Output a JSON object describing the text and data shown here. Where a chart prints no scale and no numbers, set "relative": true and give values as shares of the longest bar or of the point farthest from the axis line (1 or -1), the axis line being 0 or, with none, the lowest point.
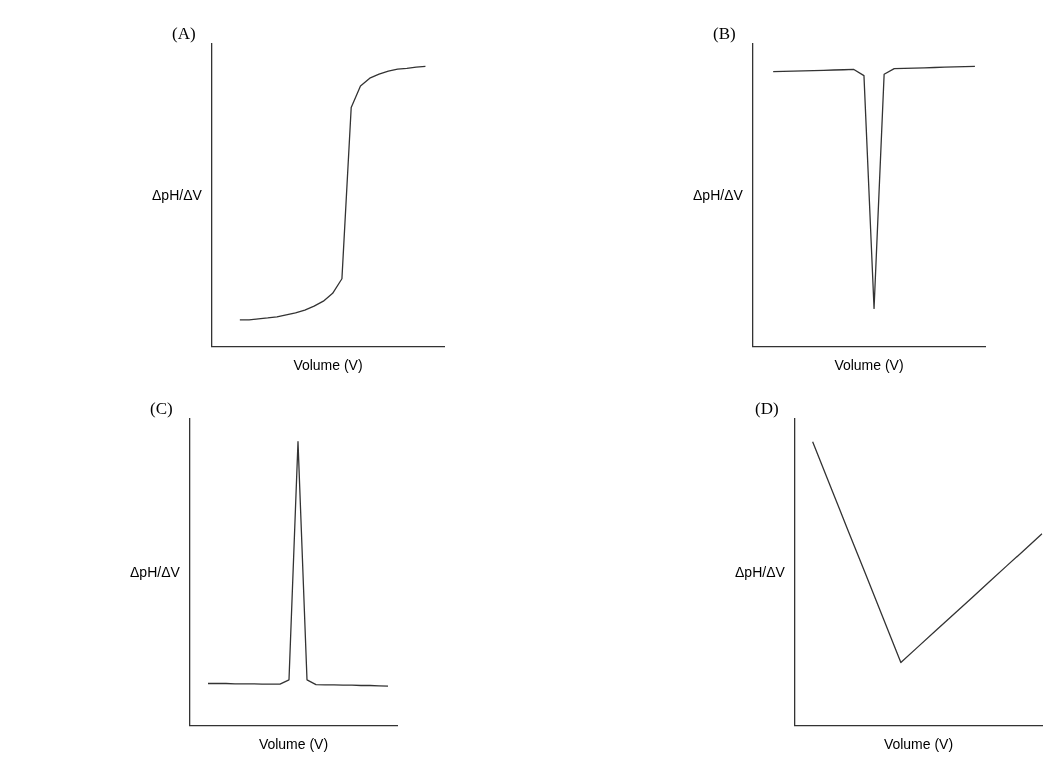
{
  "chart_data": [
    {
      "type": "line",
      "title": "(A)",
      "xlabel": "Volume (V)",
      "ylabel": "ΔpH/ΔV",
      "relative": true,
      "tick_labels": false,
      "marker": "none",
      "color": "#333333",
      "categories": [
        null,
        null,
        null,
        null,
        null,
        null,
        null,
        null,
        null,
        null,
        null,
        null,
        null,
        null,
        null,
        null,
        null,
        null,
        null,
        null,
        null,
        null,
        null,
        null,
        null,
        null
      ],
      "values": [
        null,
        null,
        null,
        0.094,
        0.094,
        0.098,
        0.101,
        0.105,
        0.112,
        0.119,
        0.129,
        0.143,
        0.161,
        0.189,
        0.241,
        0.853,
        0.93,
        0.958,
        0.972,
        0.983,
        0.99,
        0.993,
        0.997,
        1,
        null,
        null
      ]
    },
    {
      "type": "line",
      "title": "(B)",
      "xlabel": "Volume (V)",
      "ylabel": "ΔpH/ΔV",
      "relative": true,
      "tick_labels": false,
      "marker": "none",
      "color": "#333333",
      "categories": [
        null,
        null,
        null,
        null,
        null,
        null,
        null,
        null,
        null,
        null,
        null,
        null,
        null,
        null,
        null,
        null,
        null,
        null,
        null,
        null,
        null,
        null,
        null,
        null
      ],
      "values": [
        null,
        null,
        0.981,
        0.982,
        0.983,
        0.984,
        0.985,
        0.986,
        0.987,
        0.988,
        0.989,
        0.967,
        0.135,
        0.972,
        0.992,
        0.993,
        0.994,
        0.995,
        0.996,
        0.997,
        0.998,
        0.999,
        1,
        null
      ]
    },
    {
      "type": "line",
      "title": "(C)",
      "xlabel": "Volume (V)",
      "ylabel": "ΔpH/ΔV",
      "relative": true,
      "tick_labels": false,
      "marker": "none",
      "color": "#333333",
      "categories": [
        null,
        null,
        null,
        null,
        null,
        null,
        null,
        null,
        null,
        null,
        null,
        null,
        null,
        null,
        null,
        null,
        null,
        null,
        null,
        null,
        null,
        null,
        null,
        null
      ],
      "values": [
        null,
        null,
        0.147,
        0.147,
        0.147,
        0.146,
        0.146,
        0.146,
        0.145,
        0.145,
        0.145,
        0.16,
        1,
        0.16,
        0.143,
        0.142,
        0.142,
        0.141,
        0.141,
        0.14,
        0.14,
        0.139,
        0.138,
        null
      ]
    },
    {
      "type": "line",
      "title": "(D)",
      "xlabel": "Volume (V)",
      "ylabel": "ΔpH/ΔV",
      "relative": true,
      "tick_labels": false,
      "marker": "none",
      "color": "#333333",
      "categories": [
        null,
        null,
        null,
        null,
        null,
        null,
        null,
        null,
        null,
        null,
        null,
        null,
        null,
        null,
        null
      ],
      "values": [
        null,
        1,
        0.844,
        0.688,
        0.533,
        0.377,
        0.221,
        0.278,
        0.335,
        0.391,
        0.448,
        0.505,
        0.562,
        0.618,
        0.675
      ]
    }
  ]
}
